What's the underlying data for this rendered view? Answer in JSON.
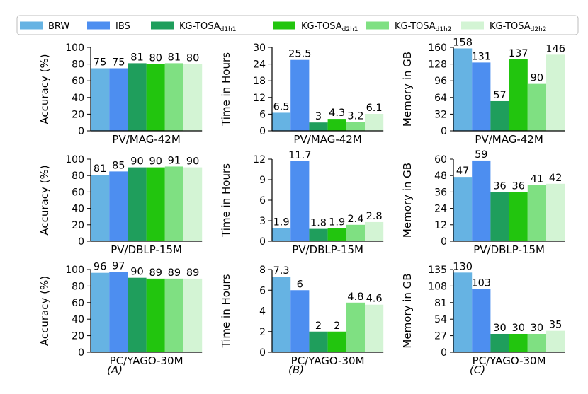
{
  "legend": {
    "items": [
      {
        "base": "BRW",
        "sub": "",
        "color": "#66b3e3"
      },
      {
        "base": "IBS",
        "sub": "",
        "color": "#4d8ef0"
      },
      {
        "base": "KG-TOSA",
        "sub": "d1h1",
        "color": "#1f9e5c"
      },
      {
        "base": "KG-TOSA",
        "sub": "d2h1",
        "color": "#22c50e"
      },
      {
        "base": "KG-TOSA",
        "sub": "d1h2",
        "color": "#7fe082"
      },
      {
        "base": "KG-TOSA",
        "sub": "d2h2",
        "color": "#d3f4d4"
      }
    ]
  },
  "column_labels": [
    "(A)",
    "(B)",
    "(C)"
  ],
  "chart_data": [
    {
      "type": "bar",
      "row": 0,
      "col": 0,
      "xlabel": "PV/MAG-42M",
      "ylabel": "Accuracy (%)",
      "ylim": [
        0,
        100
      ],
      "yticks": [
        0,
        20,
        40,
        60,
        80,
        100
      ],
      "values": [
        75,
        75,
        81,
        80,
        81,
        80
      ],
      "labels": [
        "75",
        "75",
        "81",
        "80",
        "81",
        "80"
      ]
    },
    {
      "type": "bar",
      "row": 0,
      "col": 1,
      "xlabel": "PV/MAG-42M",
      "ylabel": "Time in Hours",
      "ylim": [
        0,
        30
      ],
      "yticks": [
        0,
        6,
        12,
        18,
        24,
        30
      ],
      "values": [
        6.5,
        25.5,
        3,
        4.3,
        3.2,
        6.1
      ],
      "labels": [
        "6.5",
        "25.5",
        "3",
        "4.3",
        "3.2",
        "6.1"
      ]
    },
    {
      "type": "bar",
      "row": 0,
      "col": 2,
      "xlabel": "PV/MAG-42M",
      "ylabel": "Memory in GB",
      "ylim": [
        0,
        160
      ],
      "yticks": [
        0,
        32,
        64,
        96,
        128,
        160
      ],
      "values": [
        158,
        131,
        57,
        137,
        90,
        146
      ],
      "labels": [
        "158",
        "131",
        "57",
        "137",
        "90",
        "146"
      ]
    },
    {
      "type": "bar",
      "row": 1,
      "col": 0,
      "xlabel": "PV/DBLP-15M",
      "ylabel": "Accuracy (%)",
      "ylim": [
        0,
        100
      ],
      "yticks": [
        0,
        20,
        40,
        60,
        80,
        100
      ],
      "values": [
        81,
        85,
        90,
        90,
        91,
        90
      ],
      "labels": [
        "81",
        "85",
        "90",
        "90",
        "91",
        "90"
      ]
    },
    {
      "type": "bar",
      "row": 1,
      "col": 1,
      "xlabel": "PV/DBLP-15M",
      "ylabel": "Time in Hours",
      "ylim": [
        0,
        12
      ],
      "yticks": [
        0,
        3,
        6,
        9,
        12
      ],
      "values": [
        1.9,
        11.7,
        1.8,
        1.9,
        2.4,
        2.8
      ],
      "labels": [
        "1.9",
        "11.7",
        "1.8",
        "1.9",
        "2.4",
        "2.8"
      ]
    },
    {
      "type": "bar",
      "row": 1,
      "col": 2,
      "xlabel": "PV/DBLP-15M",
      "ylabel": "Memory in GB",
      "ylim": [
        0,
        60
      ],
      "yticks": [
        0,
        12,
        24,
        36,
        48,
        60
      ],
      "values": [
        47,
        59,
        36,
        36,
        41,
        42
      ],
      "labels": [
        "47",
        "59",
        "36",
        "36",
        "41",
        "42"
      ]
    },
    {
      "type": "bar",
      "row": 2,
      "col": 0,
      "xlabel": "PC/YAGO-30M",
      "ylabel": "Accuracy (%)",
      "ylim": [
        0,
        100
      ],
      "yticks": [
        0,
        20,
        40,
        60,
        80,
        100
      ],
      "values": [
        96,
        97,
        90,
        89,
        89,
        89
      ],
      "labels": [
        "96",
        "97",
        "90",
        "89",
        "89",
        "89"
      ]
    },
    {
      "type": "bar",
      "row": 2,
      "col": 1,
      "xlabel": "PC/YAGO-30M",
      "ylabel": "Time in Hours",
      "ylim": [
        0,
        8
      ],
      "yticks": [
        0,
        2,
        4,
        6,
        8
      ],
      "values": [
        7.3,
        6,
        2,
        2,
        4.8,
        4.6
      ],
      "labels": [
        "7.3",
        "6",
        "2",
        "2",
        "4.8",
        "4.6"
      ]
    },
    {
      "type": "bar",
      "row": 2,
      "col": 2,
      "xlabel": "PC/YAGO-30M",
      "ylabel": "Memory in GB",
      "ylim": [
        0,
        135
      ],
      "yticks": [
        0,
        27,
        54,
        81,
        108,
        135
      ],
      "values": [
        130,
        103,
        30,
        30,
        30,
        35
      ],
      "labels": [
        "130",
        "103",
        "30",
        "30",
        "30",
        "35"
      ]
    }
  ]
}
